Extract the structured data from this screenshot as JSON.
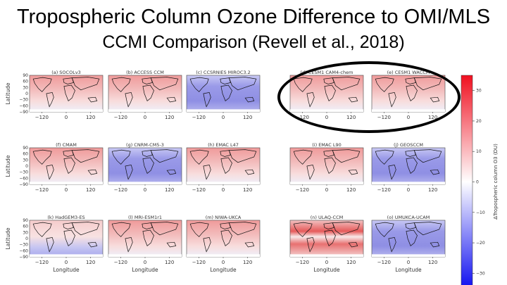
{
  "title": "Tropospheric Column Ozone Difference to OMI/MLS",
  "subtitle": "CCMI Comparison (Revell et al., 2018)",
  "figure": {
    "y_axis_label": "Latitude",
    "x_axis_label": "Longitude",
    "y_ticks": [
      "90",
      "60",
      "30",
      "0",
      "−30",
      "−60",
      "−90"
    ],
    "x_ticks": [
      "−120",
      "0",
      "120"
    ],
    "colorbar_label": "ΔTropospheric column O3 (DU)",
    "colorbar_ticks": [
      "30",
      "20",
      "10",
      "0",
      "−10",
      "−20",
      "−30"
    ],
    "colorbar_colors": {
      "max": "#f01020",
      "mid": "#ffffff",
      "min": "#1010f0"
    },
    "panels": [
      {
        "label": "(a) SOCOLv3",
        "bias": "positive"
      },
      {
        "label": "(b) ACCESS CCM",
        "bias": "positive"
      },
      {
        "label": "(c) CCSRNIES MIROC3.2",
        "bias": "negative"
      },
      {
        "label": "(d) CESM1 CAM4-chem",
        "bias": "positive",
        "highlighted": true
      },
      {
        "label": "(e) CESM1 WACCM",
        "bias": "positive",
        "highlighted": true
      },
      {
        "label": "(f) CMAM",
        "bias": "positive"
      },
      {
        "label": "(g) CNRM-CM5-3",
        "bias": "negative"
      },
      {
        "label": "(h) EMAC L47",
        "bias": "positive"
      },
      {
        "label": "(i) EMAC L90",
        "bias": "positive"
      },
      {
        "label": "(j) GEOSCCM",
        "bias": "negative"
      },
      {
        "label": "(k) HadGEM3-ES",
        "bias": "mixed"
      },
      {
        "label": "(l) MRI-ESM1r1",
        "bias": "positive"
      },
      {
        "label": "(m) NIWA-UKCA",
        "bias": "positive"
      },
      {
        "label": "(n) ULAQ-CCM",
        "bias": "strong-mixed"
      },
      {
        "label": "(o) UMUKCA-UCAM",
        "bias": "negative"
      }
    ]
  }
}
